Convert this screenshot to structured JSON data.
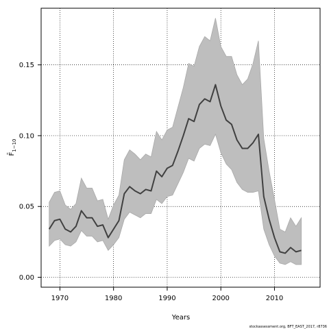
{
  "chart_data": {
    "type": "line",
    "xlabel": "Years",
    "ylabel": "F̄",
    "ylabel_sub": "1−10",
    "xlim": [
      1966.5,
      2018.5
    ],
    "ylim": [
      -0.007,
      0.19
    ],
    "x_ticks": [
      1970,
      1980,
      1990,
      2000,
      2010
    ],
    "y_ticks": [
      0.0,
      0.05,
      0.1,
      0.15
    ],
    "y_tick_labels": [
      "0.00",
      "0.05",
      "0.10",
      "0.15"
    ],
    "grid": true,
    "legend": "none",
    "x": [
      1968,
      1969,
      1970,
      1971,
      1972,
      1973,
      1974,
      1975,
      1976,
      1977,
      1978,
      1979,
      1980,
      1981,
      1982,
      1983,
      1984,
      1985,
      1986,
      1987,
      1988,
      1989,
      1990,
      1991,
      1992,
      1993,
      1994,
      1995,
      1996,
      1997,
      1998,
      1999,
      2000,
      2001,
      2002,
      2003,
      2004,
      2005,
      2006,
      2007,
      2008,
      2009,
      2010,
      2011,
      2012,
      2013,
      2014,
      2015
    ],
    "series": [
      {
        "role": "estimate",
        "values": [
          0.034,
          0.04,
          0.041,
          0.034,
          0.032,
          0.036,
          0.047,
          0.042,
          0.042,
          0.036,
          0.037,
          0.028,
          0.034,
          0.04,
          0.059,
          0.064,
          0.061,
          0.059,
          0.062,
          0.061,
          0.075,
          0.071,
          0.077,
          0.079,
          0.089,
          0.1,
          0.112,
          0.11,
          0.122,
          0.126,
          0.124,
          0.136,
          0.121,
          0.111,
          0.108,
          0.097,
          0.091,
          0.091,
          0.095,
          0.101,
          0.057,
          0.041,
          0.028,
          0.018,
          0.017,
          0.021,
          0.018,
          0.019
        ]
      },
      {
        "role": "upper",
        "values": [
          0.053,
          0.06,
          0.061,
          0.051,
          0.048,
          0.052,
          0.07,
          0.063,
          0.063,
          0.054,
          0.055,
          0.041,
          0.051,
          0.058,
          0.083,
          0.09,
          0.087,
          0.083,
          0.087,
          0.085,
          0.103,
          0.097,
          0.104,
          0.106,
          0.12,
          0.134,
          0.151,
          0.149,
          0.163,
          0.17,
          0.167,
          0.183,
          0.163,
          0.156,
          0.156,
          0.143,
          0.136,
          0.14,
          0.151,
          0.167,
          0.098,
          0.075,
          0.055,
          0.034,
          0.032,
          0.042,
          0.036,
          0.042
        ]
      },
      {
        "role": "lower",
        "values": [
          0.022,
          0.026,
          0.027,
          0.023,
          0.022,
          0.025,
          0.033,
          0.029,
          0.029,
          0.025,
          0.026,
          0.019,
          0.023,
          0.028,
          0.041,
          0.046,
          0.044,
          0.042,
          0.045,
          0.045,
          0.055,
          0.052,
          0.057,
          0.058,
          0.066,
          0.074,
          0.084,
          0.082,
          0.091,
          0.094,
          0.093,
          0.101,
          0.088,
          0.08,
          0.076,
          0.067,
          0.062,
          0.06,
          0.06,
          0.061,
          0.034,
          0.023,
          0.015,
          0.01,
          0.009,
          0.011,
          0.009,
          0.009
        ]
      }
    ],
    "band_color": "#bebebe",
    "band_edge_color": "#a8a8a8",
    "line_color": "#404040",
    "grid_color": "#000000",
    "footer": "stockassessment.org, BFT_EAST_2017, r8736"
  }
}
